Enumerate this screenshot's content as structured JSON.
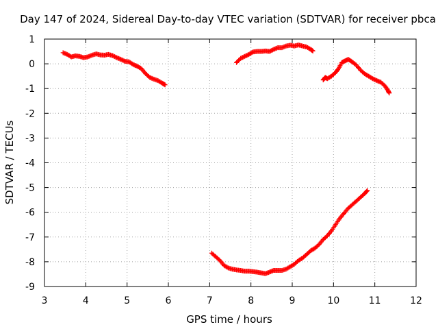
{
  "chart_data": {
    "type": "scatter",
    "title": "Day 147 of 2024, Sidereal Day-to-day VTEC variation (SDTVAR) for receiver pbca",
    "xlabel": "GPS time / hours",
    "ylabel": "SDTVAR / TECUs",
    "xlim": [
      3,
      12
    ],
    "ylim": [
      -9,
      1
    ],
    "xticks": [
      "3",
      "4",
      "5",
      "6",
      "7",
      "8",
      "9",
      "10",
      "11",
      "12"
    ],
    "yticks": [
      "1",
      "0",
      "-1",
      "-2",
      "-3",
      "-4",
      "-5",
      "-6",
      "-7",
      "-8",
      "-9"
    ],
    "grid": true,
    "marker": "plus",
    "color": "#ff0000",
    "series": [
      {
        "values": [
          [
            3.45,
            0.45
          ],
          [
            3.55,
            0.38
          ],
          [
            3.65,
            0.28
          ],
          [
            3.75,
            0.32
          ],
          [
            3.85,
            0.3
          ],
          [
            3.95,
            0.25
          ],
          [
            4.05,
            0.28
          ],
          [
            4.15,
            0.35
          ],
          [
            4.25,
            0.4
          ],
          [
            4.35,
            0.36
          ],
          [
            4.45,
            0.35
          ],
          [
            4.55,
            0.38
          ],
          [
            4.65,
            0.33
          ],
          [
            4.75,
            0.25
          ],
          [
            4.85,
            0.18
          ],
          [
            4.95,
            0.1
          ],
          [
            5.05,
            0.08
          ],
          [
            5.15,
            -0.03
          ],
          [
            5.25,
            -0.1
          ],
          [
            5.35,
            -0.2
          ],
          [
            5.45,
            -0.4
          ],
          [
            5.55,
            -0.55
          ],
          [
            5.65,
            -0.62
          ],
          [
            5.75,
            -0.68
          ],
          [
            5.85,
            -0.78
          ],
          [
            5.92,
            -0.85
          ]
        ]
      },
      {
        "values": [
          [
            7.65,
            0.05
          ],
          [
            7.75,
            0.22
          ],
          [
            7.85,
            0.3
          ],
          [
            7.95,
            0.38
          ],
          [
            8.05,
            0.48
          ],
          [
            8.15,
            0.5
          ],
          [
            8.25,
            0.5
          ],
          [
            8.35,
            0.52
          ],
          [
            8.45,
            0.5
          ],
          [
            8.55,
            0.58
          ],
          [
            8.65,
            0.65
          ],
          [
            8.75,
            0.65
          ],
          [
            8.85,
            0.72
          ],
          [
            8.95,
            0.75
          ],
          [
            9.05,
            0.72
          ],
          [
            9.15,
            0.76
          ],
          [
            9.25,
            0.72
          ],
          [
            9.35,
            0.68
          ],
          [
            9.45,
            0.58
          ],
          [
            9.5,
            0.52
          ]
        ]
      },
      {
        "values": [
          [
            9.75,
            -0.65
          ],
          [
            9.8,
            -0.55
          ],
          [
            9.85,
            -0.6
          ],
          [
            9.95,
            -0.5
          ],
          [
            10.05,
            -0.35
          ],
          [
            10.12,
            -0.2
          ],
          [
            10.2,
            0.05
          ],
          [
            10.28,
            0.12
          ],
          [
            10.36,
            0.18
          ],
          [
            10.45,
            0.08
          ],
          [
            10.55,
            -0.05
          ],
          [
            10.65,
            -0.25
          ],
          [
            10.75,
            -0.4
          ],
          [
            10.85,
            -0.5
          ],
          [
            10.95,
            -0.6
          ],
          [
            11.05,
            -0.68
          ],
          [
            11.15,
            -0.75
          ],
          [
            11.25,
            -0.9
          ],
          [
            11.32,
            -1.08
          ],
          [
            11.35,
            -1.18
          ]
        ]
      },
      {
        "values": [
          [
            7.05,
            -7.65
          ],
          [
            7.15,
            -7.8
          ],
          [
            7.25,
            -7.95
          ],
          [
            7.35,
            -8.15
          ],
          [
            7.45,
            -8.25
          ],
          [
            7.55,
            -8.3
          ],
          [
            7.65,
            -8.33
          ],
          [
            7.75,
            -8.35
          ],
          [
            7.85,
            -8.38
          ],
          [
            7.95,
            -8.38
          ],
          [
            8.05,
            -8.4
          ],
          [
            8.15,
            -8.42
          ],
          [
            8.25,
            -8.45
          ],
          [
            8.35,
            -8.48
          ],
          [
            8.45,
            -8.42
          ],
          [
            8.55,
            -8.35
          ],
          [
            8.65,
            -8.35
          ],
          [
            8.75,
            -8.35
          ],
          [
            8.85,
            -8.3
          ],
          [
            8.95,
            -8.2
          ],
          [
            9.05,
            -8.1
          ],
          [
            9.15,
            -7.95
          ],
          [
            9.25,
            -7.85
          ],
          [
            9.35,
            -7.7
          ],
          [
            9.45,
            -7.55
          ],
          [
            9.55,
            -7.45
          ],
          [
            9.65,
            -7.3
          ],
          [
            9.75,
            -7.1
          ],
          [
            9.85,
            -6.95
          ],
          [
            9.95,
            -6.75
          ],
          [
            10.05,
            -6.5
          ],
          [
            10.15,
            -6.25
          ],
          [
            10.25,
            -6.05
          ],
          [
            10.35,
            -5.85
          ],
          [
            10.45,
            -5.7
          ],
          [
            10.55,
            -5.55
          ],
          [
            10.65,
            -5.4
          ],
          [
            10.75,
            -5.25
          ],
          [
            10.82,
            -5.12
          ]
        ]
      }
    ]
  }
}
